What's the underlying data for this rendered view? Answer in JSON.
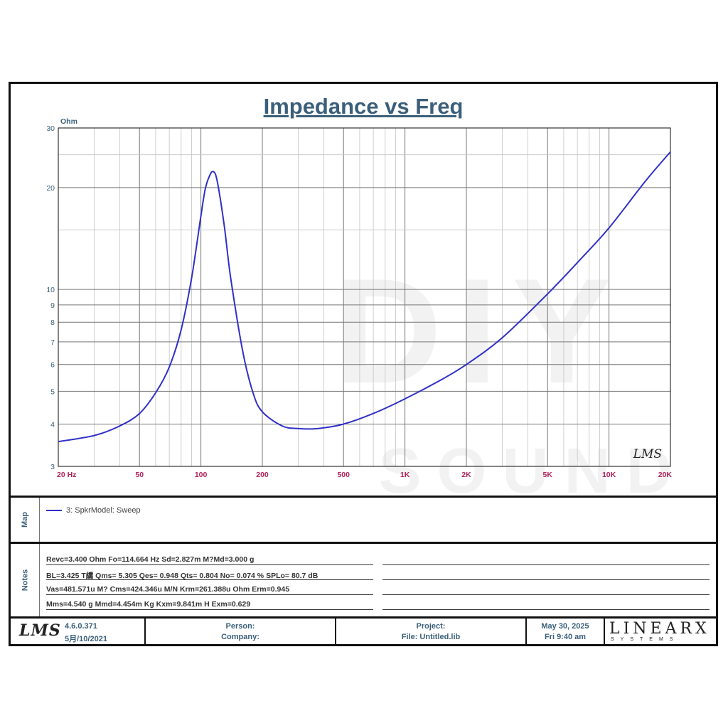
{
  "chart_data": {
    "type": "line",
    "title": "Impedance vs Freq",
    "ylabel": "Ohm",
    "xscale": "log",
    "yscale": "log",
    "xlim": [
      20,
      20000
    ],
    "ylim": [
      3,
      30
    ],
    "x_ticks": [
      {
        "value": 20,
        "label": "20  Hz"
      },
      {
        "value": 50,
        "label": "50"
      },
      {
        "value": 100,
        "label": "100"
      },
      {
        "value": 200,
        "label": "200"
      },
      {
        "value": 500,
        "label": "500"
      },
      {
        "value": 1000,
        "label": "1K"
      },
      {
        "value": 2000,
        "label": "2K"
      },
      {
        "value": 5000,
        "label": "5K"
      },
      {
        "value": 10000,
        "label": "10K"
      },
      {
        "value": 20000,
        "label": "20K"
      }
    ],
    "y_ticks": [
      {
        "value": 3,
        "label": "3"
      },
      {
        "value": 4,
        "label": "4"
      },
      {
        "value": 5,
        "label": "5"
      },
      {
        "value": 6,
        "label": "6"
      },
      {
        "value": 7,
        "label": "7"
      },
      {
        "value": 8,
        "label": "8"
      },
      {
        "value": 9,
        "label": "9"
      },
      {
        "value": 10,
        "label": "10"
      },
      {
        "value": 20,
        "label": "20"
      },
      {
        "value": 30,
        "label": "30"
      }
    ],
    "grid": true,
    "series": [
      {
        "name": "3: SpkrModel: Sweep",
        "color": "#3030c8",
        "x": [
          20,
          30,
          40,
          50,
          60,
          70,
          80,
          90,
          100,
          105,
          110,
          114.7,
          120,
          130,
          140,
          160,
          180,
          200,
          250,
          300,
          350,
          400,
          500,
          700,
          1000,
          1500,
          2000,
          3000,
          5000,
          7000,
          10000,
          15000,
          20000
        ],
        "y": [
          3.55,
          3.7,
          3.95,
          4.3,
          4.95,
          5.9,
          7.6,
          10.8,
          16.5,
          19.8,
          21.6,
          22.3,
          21.0,
          15.5,
          10.8,
          6.6,
          4.95,
          4.35,
          3.95,
          3.88,
          3.87,
          3.9,
          4.0,
          4.3,
          4.75,
          5.4,
          6.0,
          7.2,
          9.7,
          12.0,
          15.2,
          20.8,
          25.5
        ]
      }
    ]
  },
  "watermark": {
    "main": "DIY",
    "sub": "SOUND"
  },
  "legend_title": "Map",
  "notes_title": "Notes",
  "notes": [
    "Revc=3.400 Ohm  Fo=114.664 Hz  Sd=2.827m M?Md=3.000 g",
    "BL=3.425 T纁  Qms= 5.305  Qes= 0.948  Qts= 0.804  No= 0.074 %  SPLo= 80.7 dB",
    "Vas=481.571u M? Cms=424.346u M/N  Krm=261.388u Ohm  Erm=0.945",
    "Mms=4.540 g  Mmd=4.454m Kg  Kxm=9.841m H  Exm=0.629"
  ],
  "footer": {
    "logo": "LMS",
    "version": "4.6.0.371",
    "build_date": "5月/10/2021",
    "person_label": "Person:",
    "company_label": "Company:",
    "project_label": "Project:",
    "file_label": "File: Untitled.lib",
    "date": "May 30, 2025",
    "time": "Fri  9:40 am",
    "brand": "LINEARX",
    "brand_sub": "SYSTEMS"
  },
  "plot_logo": "LMS",
  "colors": {
    "curve": "#3030c8",
    "title": "#3b5f7a",
    "tick_x": "#b0245a",
    "tick_y": "#3b5f7a"
  }
}
